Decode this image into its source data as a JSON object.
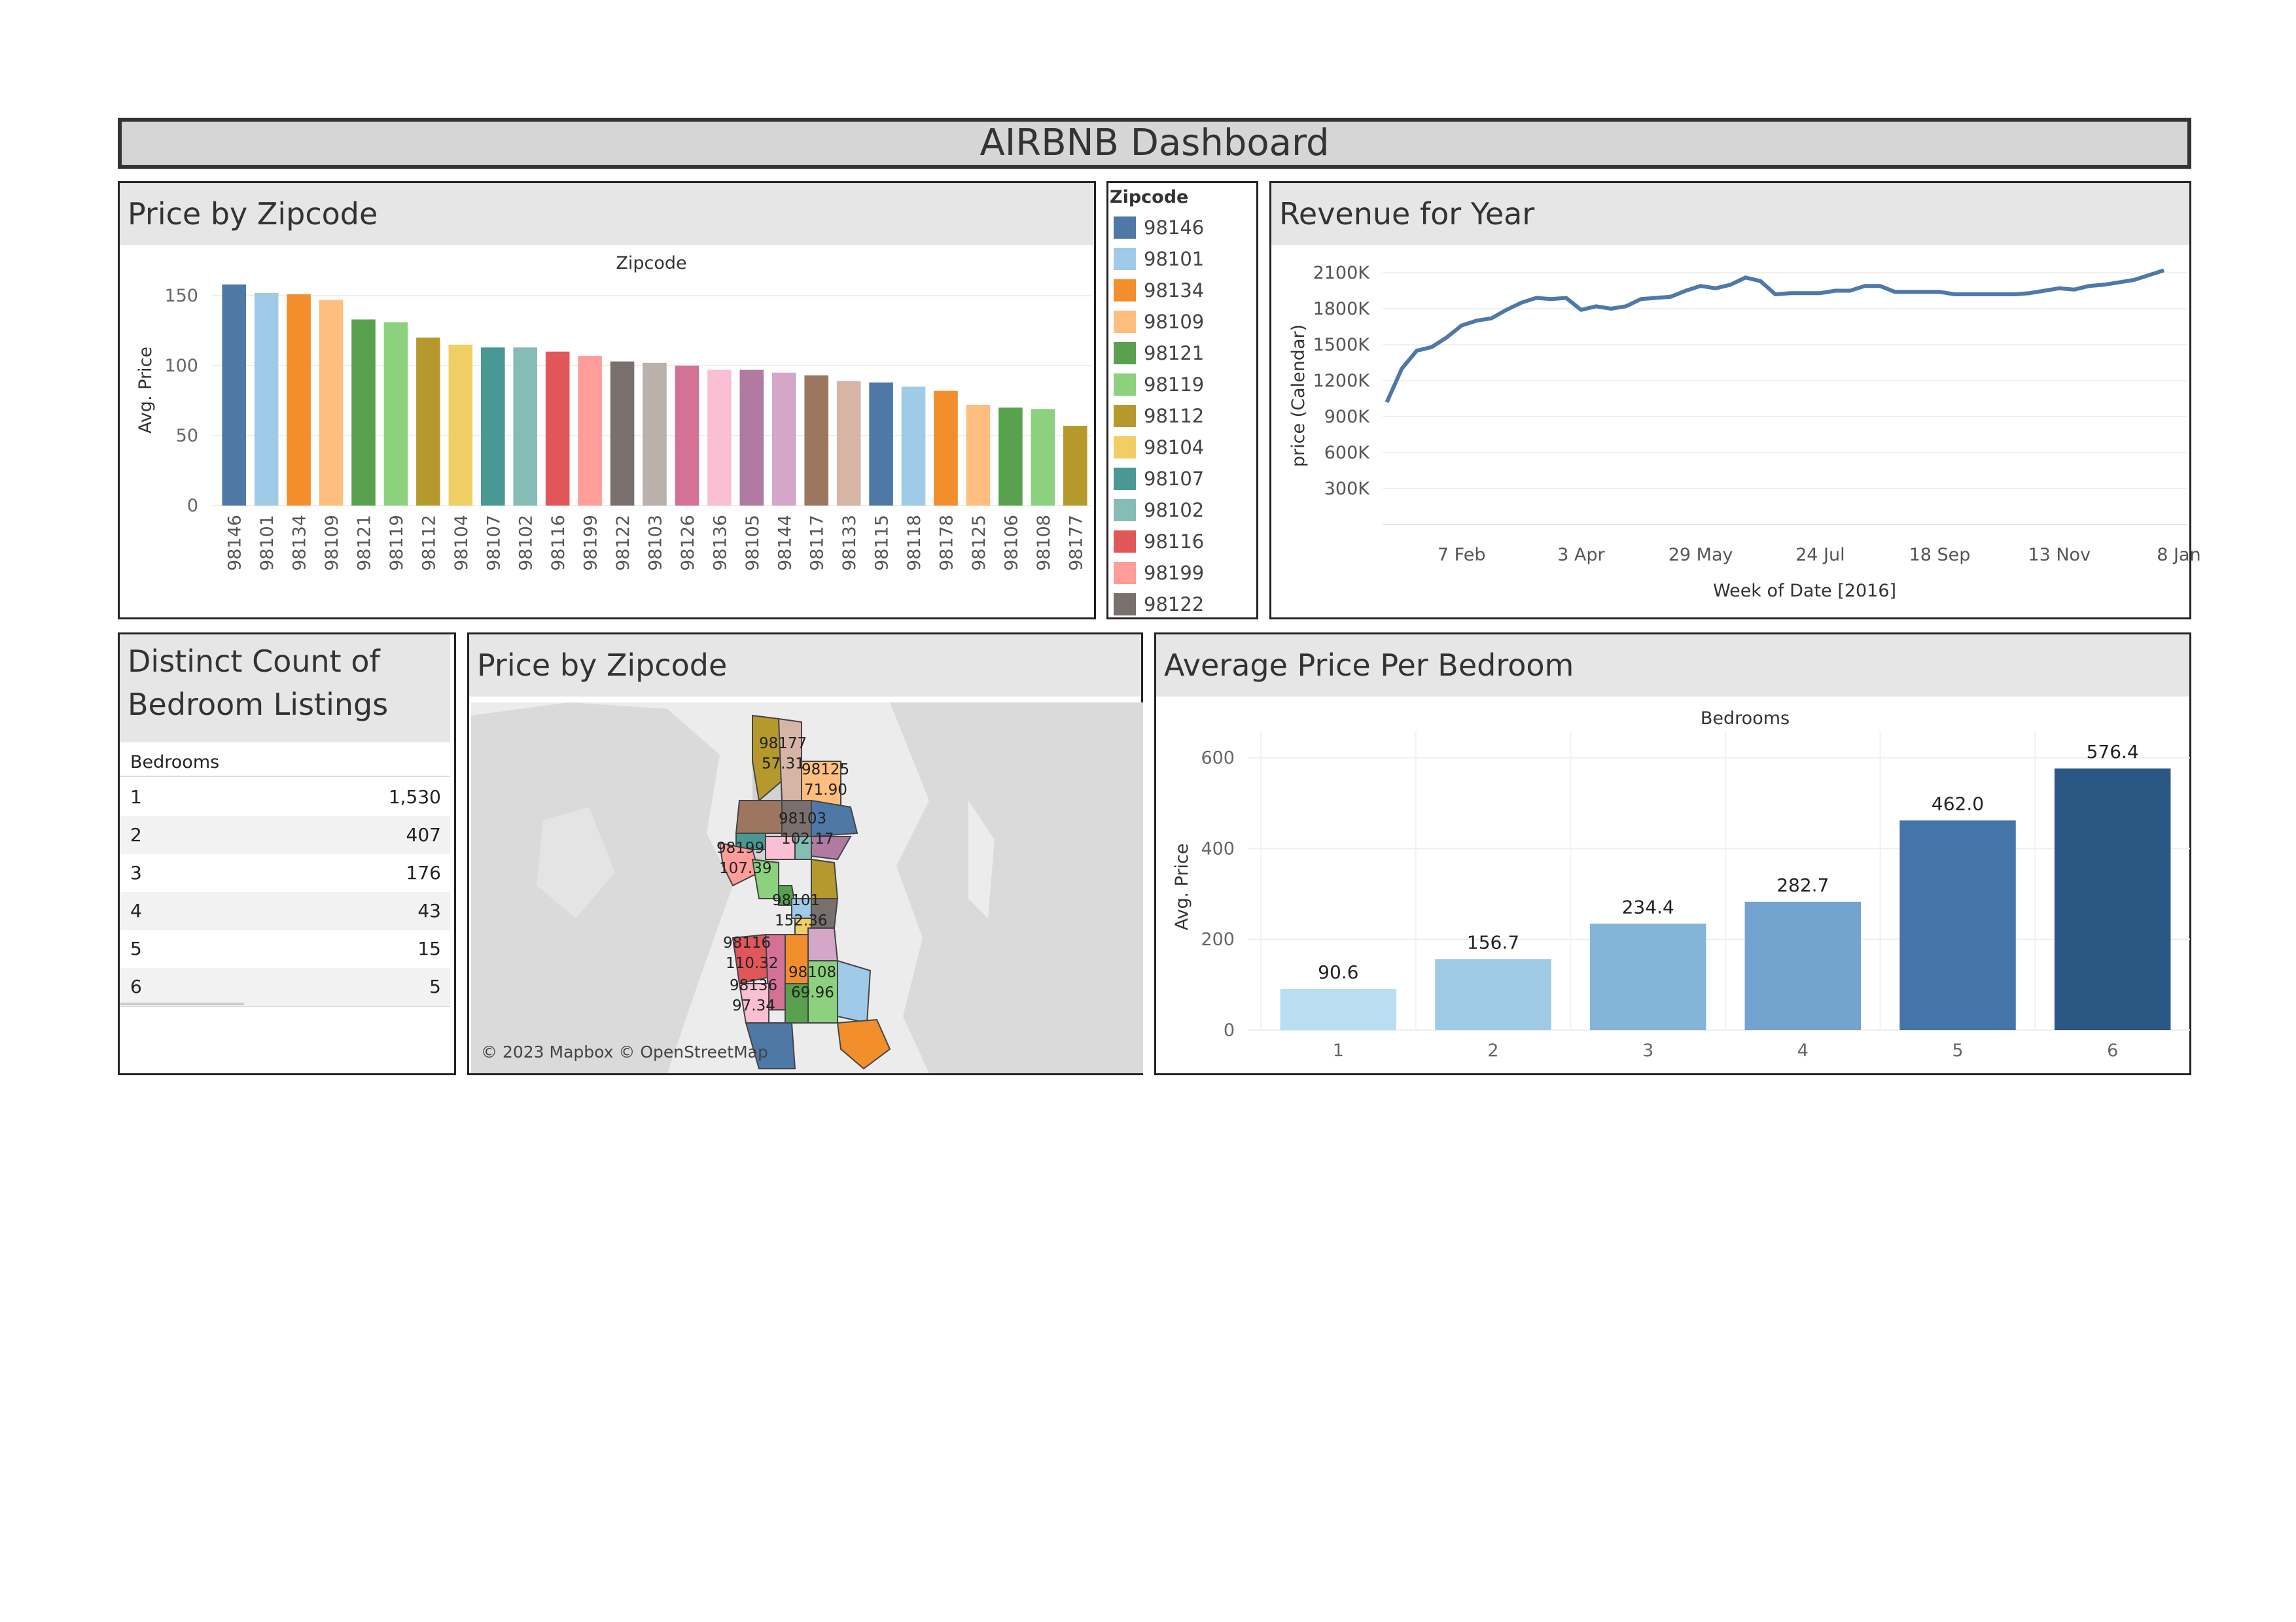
{
  "dashboard": {
    "title": "AIRBNB Dashboard"
  },
  "zip_bar": {
    "title": "Price by Zipcode",
    "chart_data": {
      "type": "bar",
      "xlabel": "Zipcode",
      "ylabel": "Avg. Price",
      "ylim": [
        0,
        165
      ],
      "yticks": [
        0,
        50,
        100,
        150
      ],
      "categories": [
        "98146",
        "98101",
        "98134",
        "98109",
        "98121",
        "98119",
        "98112",
        "98104",
        "98107",
        "98102",
        "98116",
        "98199",
        "98122",
        "98103",
        "98126",
        "98136",
        "98105",
        "98144",
        "98117",
        "98133",
        "98115",
        "98118",
        "98178",
        "98125",
        "98106",
        "98108",
        "98177"
      ],
      "values": [
        158,
        152,
        151,
        147,
        133,
        131,
        120,
        115,
        113,
        113,
        110,
        107,
        103,
        102,
        100,
        97,
        97,
        95,
        93,
        89,
        88,
        85,
        82,
        72,
        70,
        69,
        57
      ],
      "colors": [
        "#4e79a7",
        "#a0cbe8",
        "#f28e2b",
        "#ffbe7d",
        "#59a14f",
        "#8cd17d",
        "#b6992d",
        "#f1ce63",
        "#499894",
        "#86bcb6",
        "#e15759",
        "#ff9d9a",
        "#79706e",
        "#bab0ac",
        "#d37295",
        "#fabfd2",
        "#b07aa1",
        "#d4a6c8",
        "#9d7660",
        "#d7b5a6",
        "#4e79a7",
        "#a0cbe8",
        "#f28e2b",
        "#ffbe7d",
        "#59a14f",
        "#8cd17d",
        "#b6992d"
      ]
    }
  },
  "legend": {
    "title": "Zipcode",
    "items": [
      {
        "label": "98146",
        "color": "#4e79a7"
      },
      {
        "label": "98101",
        "color": "#a0cbe8"
      },
      {
        "label": "98134",
        "color": "#f28e2b"
      },
      {
        "label": "98109",
        "color": "#ffbe7d"
      },
      {
        "label": "98121",
        "color": "#59a14f"
      },
      {
        "label": "98119",
        "color": "#8cd17d"
      },
      {
        "label": "98112",
        "color": "#b6992d"
      },
      {
        "label": "98104",
        "color": "#f1ce63"
      },
      {
        "label": "98107",
        "color": "#499894"
      },
      {
        "label": "98102",
        "color": "#86bcb6"
      },
      {
        "label": "98116",
        "color": "#e15759"
      },
      {
        "label": "98199",
        "color": "#ff9d9a"
      },
      {
        "label": "98122",
        "color": "#79706e"
      }
    ]
  },
  "revenue": {
    "title": "Revenue for Year",
    "chart_data": {
      "type": "line",
      "xlabel": "Week of Date [2016]",
      "ylabel": "price (Calendar)",
      "xlim": [
        "2016-01-01",
        "2017-01-12"
      ],
      "ylim": [
        0,
        2220000
      ],
      "yticks": [
        300000,
        600000,
        900000,
        1200000,
        1500000,
        1800000,
        2100000
      ],
      "ytick_labels": [
        "300K",
        "600K",
        "900K",
        "1200K",
        "1500K",
        "1800K",
        "2100K"
      ],
      "xtick_dates": [
        "2016-02-07",
        "2016-04-03",
        "2016-05-29",
        "2016-07-24",
        "2016-09-18",
        "2016-11-13",
        "2017-01-08"
      ],
      "xtick_labels": [
        "7 Feb",
        "3 Apr",
        "29 May",
        "24 Jul",
        "18 Sep",
        "13 Nov",
        "8 Jan"
      ],
      "series_color": "#4e79a7",
      "dates": [
        "2016-01-03",
        "2016-01-10",
        "2016-01-17",
        "2016-01-24",
        "2016-01-31",
        "2016-02-07",
        "2016-02-14",
        "2016-02-21",
        "2016-02-28",
        "2016-03-06",
        "2016-03-13",
        "2016-03-20",
        "2016-03-27",
        "2016-04-03",
        "2016-04-10",
        "2016-04-17",
        "2016-04-24",
        "2016-05-01",
        "2016-05-08",
        "2016-05-15",
        "2016-05-22",
        "2016-05-29",
        "2016-06-05",
        "2016-06-12",
        "2016-06-19",
        "2016-06-26",
        "2016-07-03",
        "2016-07-10",
        "2016-07-17",
        "2016-07-24",
        "2016-07-31",
        "2016-08-07",
        "2016-08-14",
        "2016-08-21",
        "2016-08-28",
        "2016-09-04",
        "2016-09-11",
        "2016-09-18",
        "2016-09-25",
        "2016-10-02",
        "2016-10-09",
        "2016-10-16",
        "2016-10-23",
        "2016-10-30",
        "2016-11-06",
        "2016-11-13",
        "2016-11-20",
        "2016-11-27",
        "2016-12-04",
        "2016-12-11",
        "2016-12-18",
        "2016-12-25",
        "2017-01-01"
      ],
      "values": [
        1020000,
        1300000,
        1450000,
        1480000,
        1560000,
        1660000,
        1700000,
        1720000,
        1790000,
        1850000,
        1890000,
        1880000,
        1890000,
        1790000,
        1820000,
        1800000,
        1820000,
        1880000,
        1890000,
        1900000,
        1950000,
        1990000,
        1970000,
        2000000,
        2060000,
        2030000,
        1920000,
        1930000,
        1930000,
        1930000,
        1950000,
        1950000,
        1990000,
        1990000,
        1940000,
        1940000,
        1940000,
        1940000,
        1920000,
        1920000,
        1920000,
        1920000,
        1920000,
        1930000,
        1950000,
        1970000,
        1960000,
        1990000,
        2000000,
        2020000,
        2040000,
        2080000,
        2120000
      ]
    }
  },
  "bedroom_table": {
    "title_line1": "Distinct Count of",
    "title_line2": "Bedroom Listings",
    "header": "Bedrooms",
    "rows": [
      {
        "bedrooms": "1",
        "count": "1,530"
      },
      {
        "bedrooms": "2",
        "count": "407"
      },
      {
        "bedrooms": "3",
        "count": "176"
      },
      {
        "bedrooms": "4",
        "count": "43"
      },
      {
        "bedrooms": "5",
        "count": "15"
      },
      {
        "bedrooms": "6",
        "count": "5"
      }
    ]
  },
  "map": {
    "title": "Price by Zipcode",
    "attribution": "© 2023 Mapbox © OpenStreetMap",
    "labels": [
      {
        "zip": "98177",
        "price": "57.31"
      },
      {
        "zip": "98125",
        "price": "71.90"
      },
      {
        "zip": "98103",
        "price": "102.17"
      },
      {
        "zip": "98199",
        "price": "107.39"
      },
      {
        "zip": "98101",
        "price": "152.36"
      },
      {
        "zip": "98116",
        "price": "110.32"
      },
      {
        "zip": "98108",
        "price": "69.96"
      },
      {
        "zip": "98136",
        "price": "97.34"
      }
    ]
  },
  "bedroom_bar": {
    "title": "Average Price Per Bedroom",
    "chart_data": {
      "type": "bar",
      "xlabel": "Bedrooms",
      "ylabel": "Avg. Price",
      "ylim": [
        0,
        660
      ],
      "yticks": [
        0,
        200,
        400,
        600
      ],
      "categories": [
        "1",
        "2",
        "3",
        "4",
        "5",
        "6"
      ],
      "values": [
        90.6,
        156.7,
        234.4,
        282.7,
        462.0,
        576.4
      ],
      "value_labels": [
        "90.6",
        "156.7",
        "234.4",
        "282.7",
        "462.0",
        "576.4"
      ],
      "colors": [
        "#b9ddf1",
        "#9fcae6",
        "#84b5d9",
        "#73a4cf",
        "#4574a8",
        "#2a5783"
      ]
    }
  }
}
